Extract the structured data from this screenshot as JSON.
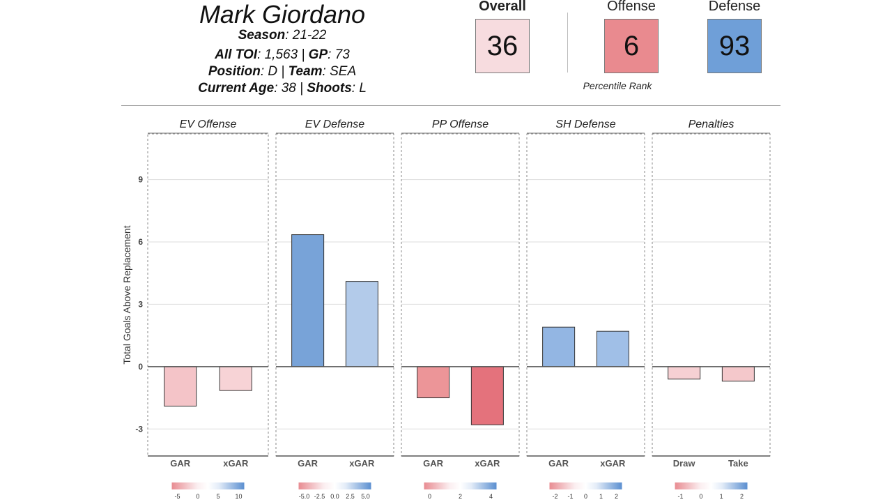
{
  "header": {
    "player_name": "Mark Giordano",
    "season_label": "Season",
    "season_value": ": 21-22",
    "toi_label": "All TOI",
    "toi_value": ": 1,563 | ",
    "gp_label": "GP",
    "gp_value": ": 73",
    "position_label": "Position",
    "position_value": ": D | ",
    "team_label": "Team",
    "team_value": ": SEA",
    "age_label": "Current Age",
    "age_value": ": 38 | ",
    "shoots_label": "Shoots",
    "shoots_value": ": L"
  },
  "percentiles": {
    "overall_label": "Overall",
    "overall_value": "36",
    "offense_label": "Offense",
    "offense_value": "6",
    "defense_label": "Defense",
    "defense_value": "93",
    "caption": "Percentile Rank"
  },
  "colors": {
    "overall_box": "#f7dcdf",
    "offense_box": "#e98a8f",
    "defense_box": "#6f9fd8"
  },
  "chart_data": {
    "type": "bar",
    "ylabel": "Total Goals Above Replacement",
    "ylim": [
      -4.3,
      11.2
    ],
    "yticks": [
      -3,
      0,
      3,
      6,
      9
    ],
    "grid": true,
    "panels": [
      {
        "title": "EV Offense",
        "categories": [
          "GAR",
          "xGAR"
        ],
        "values": [
          -1.9,
          -1.15
        ],
        "colors": [
          "#f4c4c8",
          "#f7d3d6"
        ],
        "legend_ticks": [
          "-5",
          "0",
          "5",
          "10"
        ]
      },
      {
        "title": "EV Defense",
        "categories": [
          "GAR",
          "xGAR"
        ],
        "values": [
          6.35,
          4.1
        ],
        "colors": [
          "#78a3d8",
          "#b3cbea"
        ],
        "legend_ticks": [
          "-5.0",
          "-2.5",
          "0.0",
          "2.5",
          "5.0"
        ]
      },
      {
        "title": "PP Offense",
        "categories": [
          "GAR",
          "xGAR"
        ],
        "values": [
          -1.5,
          -2.8
        ],
        "colors": [
          "#ec9598",
          "#e4727c"
        ],
        "legend_ticks": [
          "0",
          "2",
          "4"
        ]
      },
      {
        "title": "SH Defense",
        "categories": [
          "GAR",
          "xGAR"
        ],
        "values": [
          1.9,
          1.7
        ],
        "colors": [
          "#93b6e3",
          "#a0bfe7"
        ],
        "legend_ticks": [
          "-2",
          "-1",
          "0",
          "1",
          "2"
        ]
      },
      {
        "title": "Penalties",
        "categories": [
          "Draw",
          "Take"
        ],
        "values": [
          -0.6,
          -0.7
        ],
        "colors": [
          "#f6d0d3",
          "#f4c8cb"
        ],
        "legend_ticks": [
          "-1",
          "0",
          "1",
          "2"
        ]
      }
    ]
  }
}
